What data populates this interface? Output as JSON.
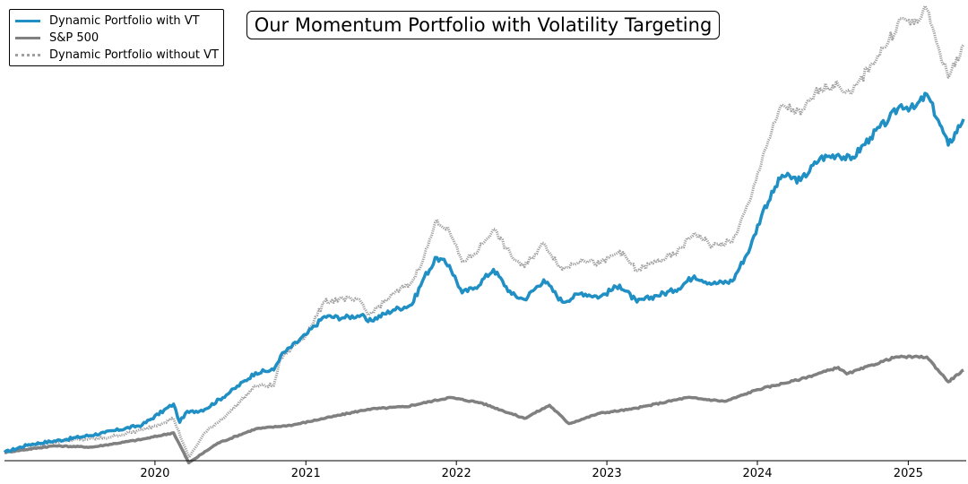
{
  "chart_data": {
    "type": "line",
    "title": "Our Momentum Portfolio with Volatility Targeting",
    "xlabel": "",
    "ylabel": "",
    "x_tick_labels": [
      "2020",
      "2021",
      "2022",
      "2023",
      "2024",
      "2025"
    ],
    "xlim": [
      "2019-01-01",
      "2025-05-15"
    ],
    "grid": false,
    "y_axis_visible": false,
    "legend_position": "top-left",
    "series": [
      {
        "name": "Dynamic Portfolio with VT",
        "color": "#1f8fc4",
        "style": "solid",
        "points": [
          [
            "2019-01-01",
            100
          ],
          [
            "2019-03-01",
            106
          ],
          [
            "2019-06-01",
            110
          ],
          [
            "2019-09-01",
            115
          ],
          [
            "2019-12-01",
            121
          ],
          [
            "2020-02-15",
            137
          ],
          [
            "2020-03-01",
            123
          ],
          [
            "2020-03-15",
            130
          ],
          [
            "2020-05-01",
            133
          ],
          [
            "2020-07-01",
            146
          ],
          [
            "2020-09-01",
            161
          ],
          [
            "2020-10-15",
            163
          ],
          [
            "2020-11-01",
            174
          ],
          [
            "2021-01-01",
            190
          ],
          [
            "2021-02-15",
            204
          ],
          [
            "2021-04-01",
            203
          ],
          [
            "2021-05-15",
            205
          ],
          [
            "2021-06-01",
            200
          ],
          [
            "2021-08-01",
            209
          ],
          [
            "2021-09-15",
            213
          ],
          [
            "2021-10-15",
            234
          ],
          [
            "2021-11-15",
            249
          ],
          [
            "2021-12-15",
            243
          ],
          [
            "2022-01-15",
            222
          ],
          [
            "2022-02-15",
            226
          ],
          [
            "2022-04-01",
            240
          ],
          [
            "2022-05-15",
            221
          ],
          [
            "2022-06-15",
            217
          ],
          [
            "2022-08-01",
            232
          ],
          [
            "2022-09-15",
            215
          ],
          [
            "2022-11-01",
            222
          ],
          [
            "2022-12-15",
            219
          ],
          [
            "2023-02-01",
            228
          ],
          [
            "2023-03-15",
            215
          ],
          [
            "2023-05-01",
            220
          ],
          [
            "2023-06-15",
            224
          ],
          [
            "2023-08-01",
            235
          ],
          [
            "2023-09-15",
            229
          ],
          [
            "2023-11-01",
            231
          ],
          [
            "2023-12-15",
            257
          ],
          [
            "2024-01-15",
            285
          ],
          [
            "2024-03-01",
            312
          ],
          [
            "2024-04-15",
            308
          ],
          [
            "2024-06-01",
            325
          ],
          [
            "2024-07-15",
            328
          ],
          [
            "2024-08-15",
            324
          ],
          [
            "2024-10-01",
            341
          ],
          [
            "2024-11-15",
            355
          ],
          [
            "2024-12-15",
            366
          ],
          [
            "2025-01-15",
            363
          ],
          [
            "2025-02-15",
            374
          ],
          [
            "2025-03-15",
            354
          ],
          [
            "2025-04-08",
            335
          ],
          [
            "2025-05-15",
            355
          ]
        ]
      },
      {
        "name": "S&P 500",
        "color": "#808080",
        "style": "solid",
        "points": [
          [
            "2019-01-01",
            100
          ],
          [
            "2019-05-01",
            105
          ],
          [
            "2019-08-01",
            104
          ],
          [
            "2019-12-01",
            110
          ],
          [
            "2020-02-15",
            115
          ],
          [
            "2020-03-23",
            92
          ],
          [
            "2020-06-01",
            107
          ],
          [
            "2020-09-01",
            118
          ],
          [
            "2020-12-01",
            121
          ],
          [
            "2021-03-01",
            127
          ],
          [
            "2021-06-01",
            133
          ],
          [
            "2021-09-01",
            135
          ],
          [
            "2021-12-15",
            142
          ],
          [
            "2022-03-01",
            138
          ],
          [
            "2022-06-15",
            126
          ],
          [
            "2022-08-15",
            136
          ],
          [
            "2022-10-01",
            122
          ],
          [
            "2022-12-15",
            130
          ],
          [
            "2023-03-01",
            133
          ],
          [
            "2023-07-15",
            142
          ],
          [
            "2023-10-15",
            139
          ],
          [
            "2024-01-01",
            148
          ],
          [
            "2024-04-15",
            156
          ],
          [
            "2024-07-15",
            165
          ],
          [
            "2024-08-05",
            160
          ],
          [
            "2024-12-01",
            173
          ],
          [
            "2025-02-15",
            173
          ],
          [
            "2025-04-08",
            154
          ],
          [
            "2025-05-15",
            163
          ]
        ]
      },
      {
        "name": "Dynamic Portfolio without VT",
        "color": "#a0a0a0",
        "style": "dotted",
        "points": [
          [
            "2019-01-01",
            100
          ],
          [
            "2019-03-01",
            105
          ],
          [
            "2019-06-01",
            109
          ],
          [
            "2019-09-01",
            111
          ],
          [
            "2019-12-01",
            117
          ],
          [
            "2020-02-15",
            126
          ],
          [
            "2020-03-23",
            96
          ],
          [
            "2020-05-01",
            115
          ],
          [
            "2020-07-01",
            131
          ],
          [
            "2020-09-01",
            151
          ],
          [
            "2020-10-15",
            151
          ],
          [
            "2020-11-01",
            172
          ],
          [
            "2021-01-01",
            190
          ],
          [
            "2021-02-15",
            215
          ],
          [
            "2021-04-01",
            218
          ],
          [
            "2021-05-15",
            215
          ],
          [
            "2021-06-01",
            205
          ],
          [
            "2021-08-01",
            221
          ],
          [
            "2021-09-15",
            230
          ],
          [
            "2021-10-15",
            250
          ],
          [
            "2021-11-15",
            278
          ],
          [
            "2021-12-15",
            269
          ],
          [
            "2022-01-15",
            246
          ],
          [
            "2022-02-15",
            252
          ],
          [
            "2022-04-01",
            271
          ],
          [
            "2022-05-15",
            250
          ],
          [
            "2022-06-15",
            242
          ],
          [
            "2022-08-01",
            260
          ],
          [
            "2022-09-15",
            240
          ],
          [
            "2022-11-01",
            248
          ],
          [
            "2022-12-15",
            244
          ],
          [
            "2023-02-01",
            254
          ],
          [
            "2023-03-15",
            239
          ],
          [
            "2023-05-01",
            246
          ],
          [
            "2023-06-15",
            251
          ],
          [
            "2023-08-01",
            268
          ],
          [
            "2023-09-15",
            258
          ],
          [
            "2023-11-01",
            261
          ],
          [
            "2023-12-15",
            293
          ],
          [
            "2024-01-15",
            328
          ],
          [
            "2024-03-01",
            366
          ],
          [
            "2024-04-15",
            359
          ],
          [
            "2024-06-01",
            379
          ],
          [
            "2024-07-15",
            381
          ],
          [
            "2024-08-15",
            374
          ],
          [
            "2024-10-01",
            396
          ],
          [
            "2024-11-15",
            415
          ],
          [
            "2024-12-15",
            432
          ],
          [
            "2025-01-15",
            428
          ],
          [
            "2025-02-15",
            439
          ],
          [
            "2025-03-15",
            410
          ],
          [
            "2025-04-08",
            387
          ],
          [
            "2025-05-15",
            412
          ]
        ]
      }
    ]
  }
}
